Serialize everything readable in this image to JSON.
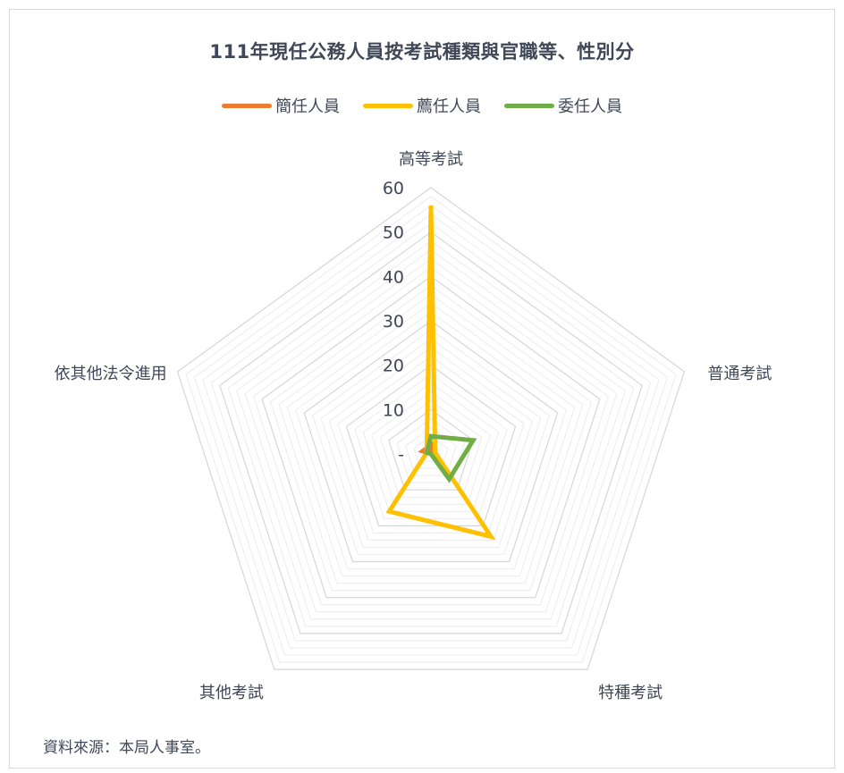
{
  "title": "111年現任公務人員按考試種類與官職等、性別分",
  "source": "資料來源：本局人事室。",
  "chart_data": {
    "type": "radar",
    "categories": [
      "高等考試",
      "普通考試",
      "特種考試",
      "其他考試",
      "依其他法令進用"
    ],
    "rmax": 60,
    "ticks": [
      {
        "value": 0,
        "label": "-"
      },
      {
        "value": 10,
        "label": "10"
      },
      {
        "value": 20,
        "label": "20"
      },
      {
        "value": 30,
        "label": "30"
      },
      {
        "value": 40,
        "label": "40"
      },
      {
        "value": 50,
        "label": "50"
      },
      {
        "value": 60,
        "label": "60"
      }
    ],
    "grid_step": 2,
    "legend_position": "top",
    "series": [
      {
        "name": "簡任人員",
        "color": "#ED7D31",
        "values": [
          2,
          0,
          0,
          0,
          2
        ]
      },
      {
        "name": "薦任人員",
        "color": "#FFC000",
        "values": [
          56,
          1,
          23,
          16,
          1
        ]
      },
      {
        "name": "委任人員",
        "color": "#70AD47",
        "values": [
          4,
          10,
          7,
          0,
          1
        ]
      }
    ]
  }
}
